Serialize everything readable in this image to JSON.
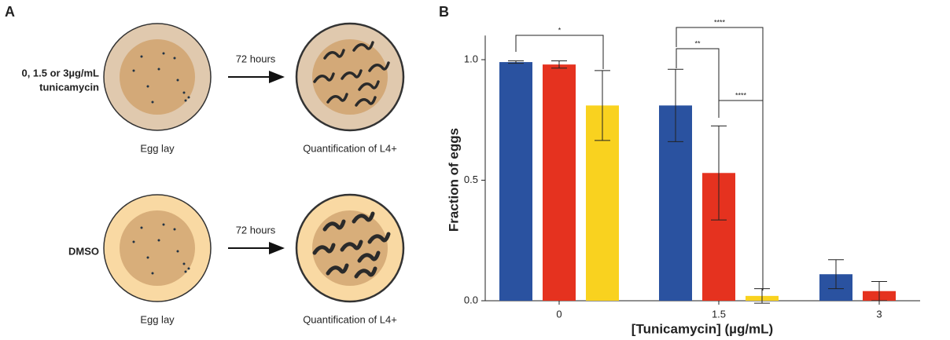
{
  "panel_a": {
    "label": "A",
    "rows": [
      {
        "condition": [
          "0, 1.5 or 3µg/mL",
          "tunicamycin"
        ],
        "interval": "72 hours",
        "start": "Egg lay",
        "end": "Quantification of L4+"
      },
      {
        "condition": [
          "DMSO"
        ],
        "interval": "72 hours",
        "start": "Egg lay",
        "end": "Quantification of L4+"
      }
    ]
  },
  "chart_data": {
    "type": "bar",
    "label": "B",
    "x_label": "[Tunicamycin] (µg/mL)",
    "y_label": "Fraction of eggs",
    "categories": [
      "0",
      "1.5",
      "3"
    ],
    "series": [
      {
        "color": "#2a52a0",
        "values": [
          0.99,
          0.81,
          0.11
        ],
        "errors": [
          0.005,
          0.15,
          0.06
        ]
      },
      {
        "color": "#e5321f",
        "values": [
          0.98,
          0.53,
          0.04
        ],
        "errors": [
          0.015,
          0.195,
          0.04
        ]
      },
      {
        "color": "#f9d21f",
        "values": [
          0.81,
          0.02,
          null
        ],
        "errors": [
          0.145,
          0.03,
          null
        ]
      }
    ],
    "ylim": [
      0,
      1.1
    ],
    "yticks": [
      {
        "value": 0,
        "label": "0.0"
      },
      {
        "value": 0.5,
        "label": "0.5"
      },
      {
        "value": 1,
        "label": "1.0"
      }
    ],
    "annotations": [
      "*",
      "****",
      "**",
      "****"
    ]
  }
}
